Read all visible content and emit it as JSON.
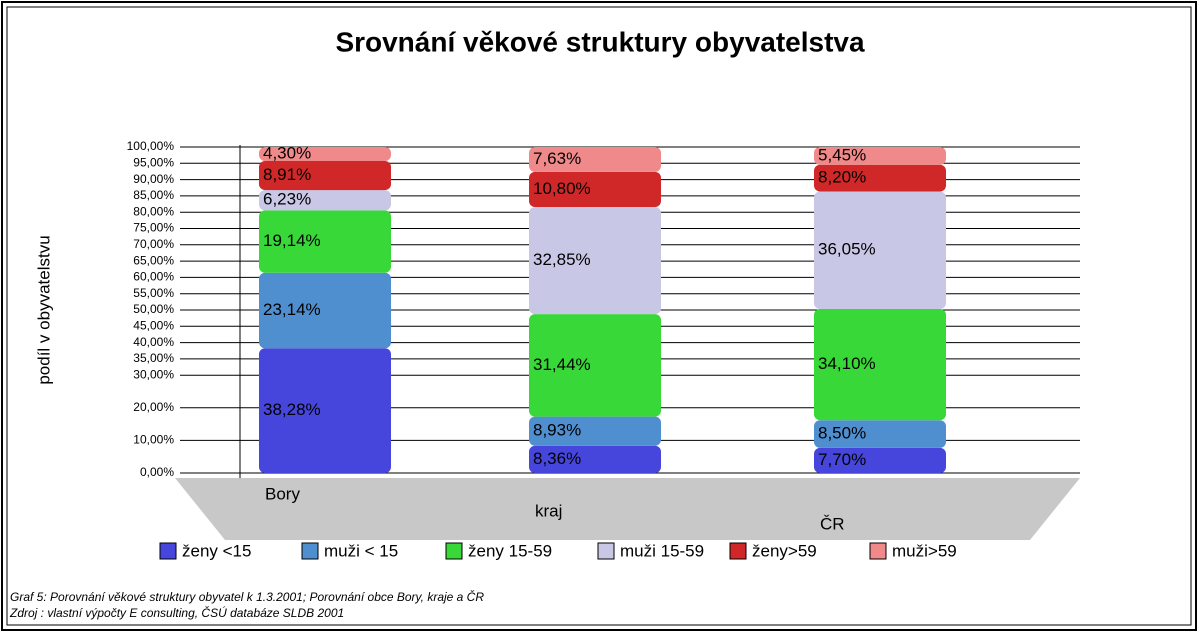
{
  "chart_data": {
    "type": "stacked_bar",
    "title": "Srovnání věkové struktury obyvatelstva",
    "y_label": "podíl v obyvatelstvu",
    "categories": [
      "Bory",
      "kraj",
      "ČR"
    ],
    "series": [
      {
        "name": "ženy <15",
        "color": "#4646dc",
        "values": [
          38.28,
          8.36,
          7.7
        ],
        "value_labels": [
          "38,28%",
          "8,36%",
          "7,70%"
        ]
      },
      {
        "name": "muži < 15",
        "color": "#4f8fd0",
        "values": [
          23.14,
          8.93,
          8.5
        ],
        "value_labels": [
          "23,14%",
          "8,93%",
          "8,50%"
        ]
      },
      {
        "name": "ženy 15-59",
        "color": "#38d838",
        "values": [
          19.14,
          31.44,
          34.1
        ],
        "value_labels": [
          "19,14%",
          "31,44%",
          "34,10%"
        ]
      },
      {
        "name": "muži 15-59",
        "color": "#c8c8e6",
        "values": [
          6.23,
          32.85,
          36.05
        ],
        "value_labels": [
          "6,23%",
          "32,85%",
          "36,05%"
        ]
      },
      {
        "name": "ženy>59",
        "color": "#d02828",
        "values": [
          8.91,
          10.8,
          8.2
        ],
        "value_labels": [
          "8,91%",
          "10,80%",
          "8,20%"
        ]
      },
      {
        "name": "muži>59",
        "color": "#f08a8a",
        "values": [
          4.3,
          7.63,
          5.45
        ],
        "value_labels": [
          "4,30%",
          "7,63%",
          "5,45%"
        ]
      }
    ],
    "ylim": [
      0,
      100
    ],
    "yticks": [
      {
        "value": 0,
        "label": "0,00%"
      },
      {
        "value": 10,
        "label": "10,00%"
      },
      {
        "value": 20,
        "label": "20,00%"
      },
      {
        "value": 30,
        "label": "30,00%"
      },
      {
        "value": 35,
        "label": "35,00%"
      },
      {
        "value": 40,
        "label": "40,00%"
      },
      {
        "value": 45,
        "label": "45,00%"
      },
      {
        "value": 50,
        "label": "50,00%"
      },
      {
        "value": 55,
        "label": "55,00%"
      },
      {
        "value": 60,
        "label": "60,00%"
      },
      {
        "value": 65,
        "label": "65,00%"
      },
      {
        "value": 70,
        "label": "70,00%"
      },
      {
        "value": 75,
        "label": "75,00%"
      },
      {
        "value": 80,
        "label": "80,00%"
      },
      {
        "value": 85,
        "label": "85,00%"
      },
      {
        "value": 90,
        "label": "90,00%"
      },
      {
        "value": 95,
        "label": "95,00%"
      },
      {
        "value": 100,
        "label": "100,00%"
      }
    ],
    "grid": true,
    "legend": "bottom",
    "captions": [
      "Graf 5: Porovnání věkové struktury obyvatel k 1.3.2001; Porovnání obce Bory, kraje a ČR",
      "Zdroj : vlastní výpočty E consulting, ČSÚ databáze SLDB 2001"
    ]
  }
}
